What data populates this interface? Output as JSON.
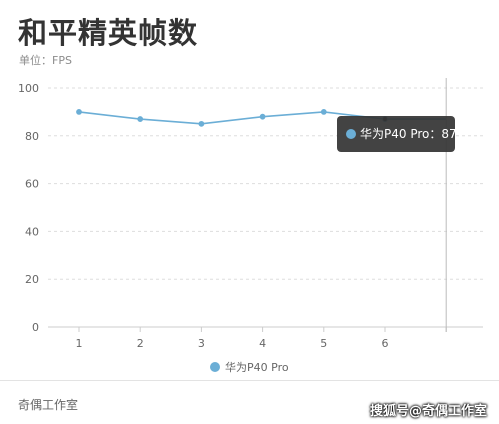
{
  "header": {
    "title": "和平精英帧数",
    "unit": "单位：FPS"
  },
  "footer": {
    "left": "奇偶工作室",
    "watermark": "搜狐号@奇偶工作室"
  },
  "tooltip": {
    "series": "华为P40 Pro",
    "separator": "：",
    "value": "87"
  },
  "colors": {
    "line": "#6baed6",
    "grid": "#dddddd",
    "axis": "#cccccc",
    "tooltip_bg": "#333333"
  },
  "chart_data": {
    "type": "line",
    "title": "和平精英帧数",
    "ylabel": "单位：FPS",
    "categories": [
      "1",
      "2",
      "3",
      "4",
      "5",
      "6",
      ""
    ],
    "y_ticks": [
      0,
      20,
      40,
      60,
      80,
      100
    ],
    "ylim": [
      0,
      100
    ],
    "grid": true,
    "legend": "bottom-center",
    "series": [
      {
        "name": "华为P40 Pro",
        "values": [
          90,
          87,
          85,
          88,
          90,
          87,
          87
        ]
      }
    ]
  }
}
